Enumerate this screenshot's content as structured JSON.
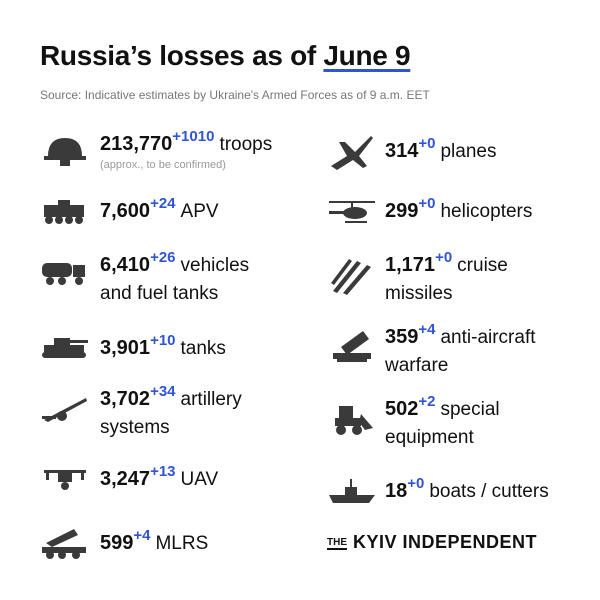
{
  "header": {
    "title": "Russia’s losses as of",
    "date": "June 9",
    "source": "Source: Indicative estimates by Ukraine's Armed Forces as of 9 a.m. EET"
  },
  "left": [
    {
      "count": "213,770",
      "delta": "+1010",
      "label": [
        "troops"
      ],
      "note": "(approx., to be confirmed)"
    },
    {
      "count": "7,600",
      "delta": "+24",
      "label": [
        "APV"
      ]
    },
    {
      "count": "6,410",
      "delta": "+26",
      "label": [
        "vehicles",
        "and fuel tanks"
      ]
    },
    {
      "count": "3,901",
      "delta": "+10",
      "label": [
        "tanks"
      ]
    },
    {
      "count": "3,702",
      "delta": "+34",
      "label": [
        "artillery",
        "systems"
      ]
    },
    {
      "count": "3,247",
      "delta": "+13",
      "label": [
        "UAV"
      ]
    },
    {
      "count": "599",
      "delta": "+4",
      "label": [
        "MLRS"
      ]
    }
  ],
  "right": [
    {
      "count": "314",
      "delta": "+0",
      "label": [
        "planes"
      ]
    },
    {
      "count": "299",
      "delta": "+0",
      "label": [
        "helicopters"
      ]
    },
    {
      "count": "1,171",
      "delta": "+0",
      "label": [
        "cruise",
        "missiles"
      ]
    },
    {
      "count": "359",
      "delta": "+4",
      "label": [
        "anti-aircraft",
        "warfare"
      ]
    },
    {
      "count": "502",
      "delta": "+2",
      "label": [
        "special",
        "equipment"
      ]
    },
    {
      "count": "18",
      "delta": "+0",
      "label": [
        "boats / cutters"
      ]
    }
  ],
  "logo": {
    "prefix": "THE",
    "name": "KYIV INDEPENDENT"
  }
}
